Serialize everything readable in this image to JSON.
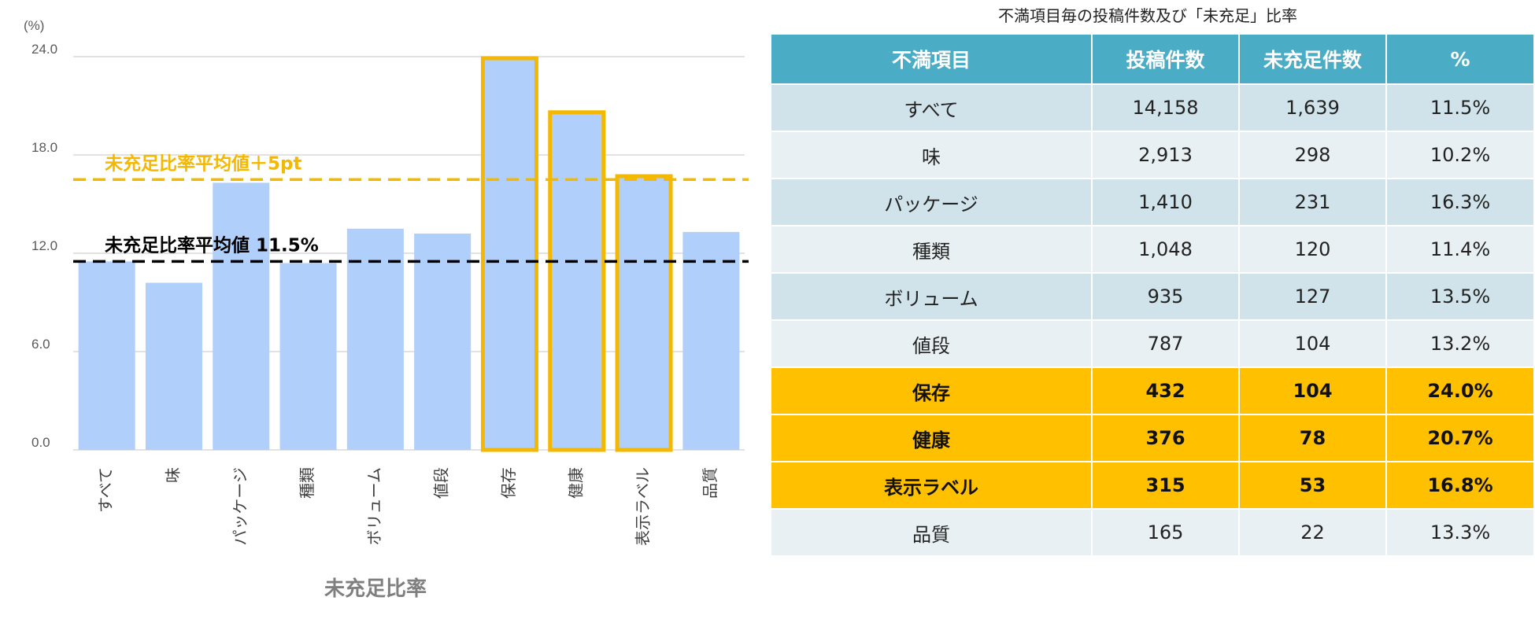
{
  "chart_data": {
    "type": "bar",
    "title": "",
    "xlabel": "未充足比率",
    "ylabel": "(%)",
    "ylim": [
      0,
      24
    ],
    "yticks": [
      "0.0",
      "6.0",
      "12.0",
      "18.0",
      "24.0"
    ],
    "categories": [
      "すべて",
      "味",
      "パッケージ",
      "種類",
      "ボリューム",
      "値段",
      "保存",
      "健康",
      "表示ラベル",
      "品質"
    ],
    "values": [
      11.5,
      10.2,
      16.3,
      11.4,
      13.5,
      13.2,
      24.0,
      20.7,
      16.8,
      13.3
    ],
    "highlighted": [
      false,
      false,
      false,
      false,
      false,
      false,
      true,
      true,
      true,
      false
    ],
    "grid": true,
    "bar_color": "#b0cffa",
    "highlight_color": "#f5b800",
    "reference_lines": [
      {
        "label": "未充足比率平均値 11.5%",
        "value": 11.5,
        "color": "#000000"
      },
      {
        "label": "未充足比率平均値＋5pt",
        "value": 16.5,
        "color": "#f5b800"
      }
    ]
  },
  "table": {
    "title": "不満項目毎の投稿件数及び「未充足」比率",
    "headers": [
      "不満項目",
      "投稿件数",
      "未充足件数",
      "%"
    ],
    "rows": [
      {
        "cells": [
          "すべて",
          "14,158",
          "1,639",
          "11.5%"
        ],
        "highlight": false
      },
      {
        "cells": [
          "味",
          "2,913",
          "298",
          "10.2%"
        ],
        "highlight": false
      },
      {
        "cells": [
          "パッケージ",
          "1,410",
          "231",
          "16.3%"
        ],
        "highlight": false
      },
      {
        "cells": [
          "種類",
          "1,048",
          "120",
          "11.4%"
        ],
        "highlight": false
      },
      {
        "cells": [
          "ボリューム",
          "935",
          "127",
          "13.5%"
        ],
        "highlight": false
      },
      {
        "cells": [
          "値段",
          "787",
          "104",
          "13.2%"
        ],
        "highlight": false
      },
      {
        "cells": [
          "保存",
          "432",
          "104",
          "24.0%"
        ],
        "highlight": true
      },
      {
        "cells": [
          "健康",
          "376",
          "78",
          "20.7%"
        ],
        "highlight": true
      },
      {
        "cells": [
          "表示ラベル",
          "315",
          "53",
          "16.8%"
        ],
        "highlight": true
      },
      {
        "cells": [
          "品質",
          "165",
          "22",
          "13.3%"
        ],
        "highlight": false
      }
    ],
    "header_color": "#4bacc6",
    "highlight_color": "#ffc000"
  }
}
